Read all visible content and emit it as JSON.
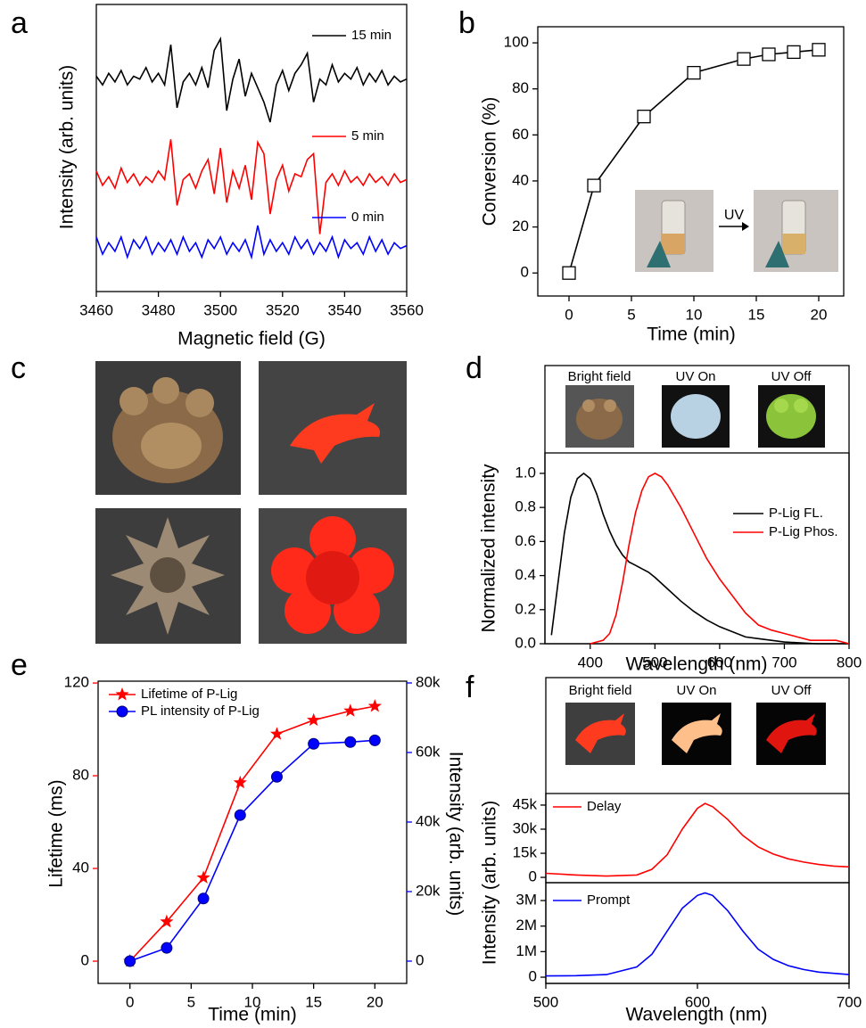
{
  "chart_data": [
    {
      "type": "line",
      "panel": "a",
      "xlabel": "Magnetic field (G)",
      "ylabel": "Intensity (arb. units)",
      "x": [
        3460,
        3462,
        3464,
        3466,
        3468,
        3470,
        3472,
        3474,
        3476,
        3478,
        3480,
        3482,
        3484,
        3486,
        3488,
        3490,
        3492,
        3494,
        3496,
        3498,
        3500,
        3502,
        3504,
        3506,
        3508,
        3510,
        3512,
        3514,
        3516,
        3518,
        3520,
        3522,
        3524,
        3526,
        3528,
        3530,
        3532,
        3534,
        3536,
        3538,
        3540,
        3542,
        3544,
        3546,
        3548,
        3550,
        3552,
        3554,
        3556,
        3558,
        3560
      ],
      "xlim": [
        3460,
        3560
      ],
      "xticks": [
        3460,
        3480,
        3500,
        3520,
        3540,
        3560
      ],
      "ylim": [
        0,
        10
      ],
      "series": [
        {
          "name": "15 min",
          "color": "#000000",
          "values": [
            7.5,
            7.2,
            7.6,
            7.3,
            7.7,
            7.2,
            7.5,
            7.4,
            7.8,
            7.3,
            7.6,
            7.2,
            8.6,
            6.4,
            7.3,
            7.6,
            7.2,
            7.8,
            7.1,
            8.4,
            8.8,
            6.3,
            7.4,
            8.1,
            6.8,
            7.6,
            7.1,
            6.6,
            5.9,
            7.2,
            7.7,
            7.0,
            7.6,
            7.9,
            8.3,
            6.6,
            7.4,
            7.2,
            7.9,
            7.3,
            7.6,
            7.4,
            7.8,
            7.2,
            7.6,
            7.3,
            7.7,
            7.2,
            7.5,
            7.3,
            7.4
          ]
        },
        {
          "name": "5 min",
          "color": "#ff0000",
          "values": [
            4.2,
            3.7,
            4.0,
            3.6,
            4.3,
            3.8,
            4.1,
            3.7,
            4.0,
            3.8,
            4.2,
            3.9,
            5.3,
            3.0,
            3.9,
            4.1,
            3.6,
            4.2,
            4.6,
            3.4,
            5.0,
            3.1,
            4.2,
            3.6,
            4.4,
            3.2,
            5.2,
            4.8,
            2.7,
            3.9,
            4.4,
            3.5,
            4.1,
            4.0,
            4.6,
            4.8,
            2.0,
            3.8,
            4.1,
            3.7,
            4.2,
            3.8,
            4.0,
            3.7,
            4.1,
            3.8,
            4.0,
            3.7,
            4.1,
            3.8,
            3.9
          ]
        },
        {
          "name": "0 min",
          "color": "#0000ff",
          "values": [
            1.9,
            1.3,
            1.7,
            1.4,
            1.9,
            1.2,
            1.8,
            1.5,
            1.9,
            1.3,
            1.7,
            1.4,
            1.8,
            1.3,
            1.9,
            1.4,
            1.7,
            1.2,
            1.8,
            1.5,
            1.9,
            1.3,
            1.7,
            1.4,
            1.8,
            1.2,
            2.3,
            1.3,
            1.8,
            1.4,
            1.7,
            1.3,
            1.9,
            1.5,
            1.8,
            1.3,
            1.7,
            1.4,
            1.9,
            1.2,
            1.8,
            1.5,
            1.7,
            1.3,
            1.9,
            1.4,
            1.8,
            1.3,
            1.7,
            1.5,
            1.6
          ]
        }
      ]
    },
    {
      "type": "line",
      "panel": "b",
      "xlabel": "Time (min)",
      "ylabel": "Conversion (%)",
      "annotation": "UV",
      "x": [
        0,
        2,
        6,
        10,
        14,
        16,
        18,
        20
      ],
      "values": [
        0,
        38,
        68,
        87,
        93,
        95,
        96,
        97
      ],
      "color": "#000000",
      "marker": "square",
      "xlim": [
        -2.5,
        22
      ],
      "xticks": [
        0,
        5,
        10,
        15,
        20
      ],
      "ylim": [
        -10,
        107
      ],
      "yticks": [
        0,
        20,
        40,
        60,
        80,
        100
      ]
    },
    {
      "type": "photos",
      "panel": "c"
    },
    {
      "type": "line",
      "panel": "d",
      "xlabel": "Wavelength (nm)",
      "ylabel": "Normalized intensity",
      "photo_labels": [
        "Bright field",
        "UV On",
        "UV Off"
      ],
      "xlim": [
        330,
        800
      ],
      "xticks": [
        400,
        500,
        600,
        700,
        800
      ],
      "ylim": [
        0,
        1.12
      ],
      "yticks": [
        {
          "value": 0,
          "label": "0.0"
        },
        0.2,
        0.4,
        0.6,
        0.8,
        {
          "value": 1,
          "label": "1.0"
        }
      ],
      "series": [
        {
          "name": "P-Lig FL.",
          "color": "#000000",
          "x": [
            340,
            350,
            360,
            370,
            380,
            390,
            400,
            410,
            420,
            430,
            440,
            450,
            460,
            470,
            480,
            490,
            500,
            520,
            540,
            560,
            580,
            600,
            620,
            640,
            660,
            680,
            700,
            750,
            800
          ],
          "values": [
            0.05,
            0.35,
            0.65,
            0.86,
            0.97,
            1.0,
            0.97,
            0.88,
            0.76,
            0.66,
            0.58,
            0.52,
            0.48,
            0.46,
            0.44,
            0.42,
            0.39,
            0.32,
            0.25,
            0.19,
            0.14,
            0.1,
            0.07,
            0.04,
            0.03,
            0.02,
            0.01,
            0,
            0
          ]
        },
        {
          "name": "P-Lig Phos.",
          "color": "#ff0000",
          "x": [
            400,
            420,
            430,
            440,
            450,
            460,
            470,
            480,
            490,
            500,
            510,
            520,
            540,
            560,
            580,
            600,
            620,
            640,
            660,
            680,
            700,
            720,
            740,
            760,
            780,
            800
          ],
          "values": [
            0,
            0.02,
            0.06,
            0.17,
            0.36,
            0.58,
            0.77,
            0.9,
            0.98,
            1.0,
            0.98,
            0.93,
            0.8,
            0.65,
            0.5,
            0.38,
            0.28,
            0.18,
            0.11,
            0.08,
            0.06,
            0.04,
            0.02,
            0.02,
            0.02,
            0
          ]
        }
      ]
    },
    {
      "type": "line",
      "panel": "e",
      "xlabel": "Time (min)",
      "ylabel": "Lifetime (ms)",
      "y2label": "Intensity (arb. units)",
      "x": [
        0,
        3,
        6,
        9,
        12,
        15,
        18,
        20
      ],
      "xlim": [
        -2.6,
        22.6
      ],
      "xticks": [
        0,
        5,
        10,
        15,
        20
      ],
      "ylim": [
        -9.6,
        120.8
      ],
      "yticks": [
        0,
        40,
        80,
        120
      ],
      "y2lim": [
        -6410,
        80510
      ],
      "y2ticks": [
        0,
        {
          "value": 20000,
          "label": "20k"
        },
        {
          "value": 40000,
          "label": "40k"
        },
        {
          "value": 60000,
          "label": "60k"
        },
        {
          "value": 80000,
          "label": "80k"
        }
      ],
      "series": [
        {
          "name": "Lifetime of P-Lig",
          "color": "#ff0000",
          "marker": "star",
          "values": [
            0,
            17,
            36,
            77,
            98,
            104,
            108,
            110
          ]
        },
        {
          "name": "PL intensity of P-Lig",
          "color": "#0000ff",
          "marker": "circle",
          "axis": "y2",
          "values": [
            0,
            3800,
            18000,
            42000,
            53000,
            62500,
            63000,
            63500
          ]
        }
      ]
    },
    {
      "type": "line",
      "panel": "f",
      "ylabel": "Intensity (arb. units)",
      "photo_labels": [
        "Bright field",
        "UV On",
        "UV Off"
      ],
      "x": [
        500,
        520,
        540,
        560,
        570,
        580,
        590,
        600,
        605,
        610,
        620,
        630,
        640,
        650,
        660,
        670,
        680,
        690,
        700
      ],
      "xlim": [
        500,
        700
      ],
      "ylim": [
        -3300,
        52200
      ],
      "yticks": [
        0,
        {
          "value": 15000,
          "label": "15k"
        },
        {
          "value": 30000,
          "label": "30k"
        },
        {
          "value": 45000,
          "label": "45k"
        }
      ],
      "series": [
        {
          "name": "Delay",
          "color": "#ff0000",
          "values": [
            2500,
            1500,
            800,
            1500,
            5000,
            14000,
            30000,
            43000,
            46000,
            44000,
            36000,
            26000,
            19000,
            14500,
            11500,
            9500,
            8000,
            7000,
            6500
          ]
        }
      ]
    },
    {
      "type": "line",
      "xlabel": "Wavelength (nm)",
      "x": [
        500,
        520,
        540,
        560,
        570,
        580,
        590,
        600,
        605,
        610,
        620,
        630,
        640,
        650,
        660,
        670,
        680,
        690,
        700
      ],
      "xlim": [
        500,
        700
      ],
      "xticks": [
        500,
        600,
        700
      ],
      "ylim": [
        -244000,
        3700000
      ],
      "yticks": [
        0,
        {
          "value": 1000000,
          "label": "1M"
        },
        {
          "value": 2000000,
          "label": "2M"
        },
        {
          "value": 3000000,
          "label": "3M"
        }
      ],
      "series": [
        {
          "name": "Prompt",
          "color": "#0000ff",
          "values": [
            50000,
            60000,
            100000,
            400000,
            900000,
            1800000,
            2700000,
            3200000,
            3300000,
            3200000,
            2600000,
            1800000,
            1100000,
            700000,
            450000,
            300000,
            200000,
            150000,
            100000
          ]
        }
      ]
    }
  ]
}
